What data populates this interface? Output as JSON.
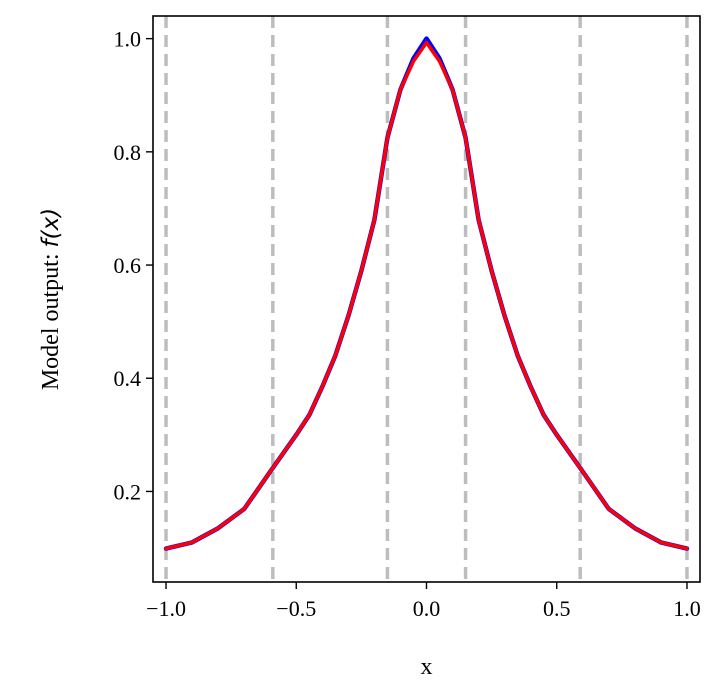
{
  "chart_data": {
    "type": "line",
    "title": "",
    "xlabel": "x",
    "ylabel": "Model output: ",
    "ylabel_math": "f(x)",
    "xlim": [
      -1.05,
      1.05
    ],
    "ylim": [
      0.04,
      1.04
    ],
    "x_ticks": [
      -1.0,
      -0.5,
      0.0,
      0.5,
      1.0
    ],
    "x_tick_labels": [
      "−1.0",
      "−0.5",
      "0.0",
      "0.5",
      "1.0"
    ],
    "y_ticks": [
      0.2,
      0.4,
      0.6,
      0.8,
      1.0
    ],
    "y_tick_labels": [
      "0.2",
      "0.4",
      "0.6",
      "0.8",
      "1.0"
    ],
    "grid": false,
    "legend": "none",
    "vertical_reference_lines": {
      "x": [
        -1.0,
        -0.59,
        -0.15,
        0.15,
        0.59,
        1.0
      ],
      "style": "dashed",
      "color": "#bdbdbd"
    },
    "series": [
      {
        "color": "#0000ff",
        "style": "solid",
        "x": [
          -1.0,
          -0.9,
          -0.8,
          -0.7,
          -0.6,
          -0.5,
          -0.45,
          -0.4,
          -0.35,
          -0.3,
          -0.25,
          -0.2,
          -0.15,
          -0.1,
          -0.05,
          0.0,
          0.05,
          0.1,
          0.15,
          0.2,
          0.25,
          0.3,
          0.35,
          0.4,
          0.45,
          0.5,
          0.6,
          0.7,
          0.8,
          0.9,
          1.0
        ],
        "y": [
          0.099,
          0.11,
          0.135,
          0.169,
          0.235,
          0.3,
          0.335,
          0.385,
          0.44,
          0.51,
          0.59,
          0.68,
          0.825,
          0.91,
          0.965,
          1.0,
          0.965,
          0.91,
          0.825,
          0.68,
          0.59,
          0.51,
          0.44,
          0.385,
          0.335,
          0.3,
          0.235,
          0.169,
          0.135,
          0.11,
          0.099
        ]
      },
      {
        "color": "#ff0000",
        "style": "solid",
        "x": [
          -1.0,
          -0.9,
          -0.8,
          -0.7,
          -0.6,
          -0.5,
          -0.45,
          -0.4,
          -0.35,
          -0.3,
          -0.25,
          -0.2,
          -0.15,
          -0.1,
          -0.05,
          0.0,
          0.05,
          0.1,
          0.15,
          0.2,
          0.25,
          0.3,
          0.35,
          0.4,
          0.45,
          0.5,
          0.6,
          0.7,
          0.8,
          0.9,
          1.0
        ],
        "y": [
          0.099,
          0.11,
          0.135,
          0.169,
          0.235,
          0.3,
          0.335,
          0.385,
          0.44,
          0.51,
          0.59,
          0.68,
          0.825,
          0.91,
          0.96,
          0.993,
          0.96,
          0.91,
          0.825,
          0.68,
          0.59,
          0.51,
          0.44,
          0.385,
          0.335,
          0.3,
          0.235,
          0.169,
          0.135,
          0.11,
          0.099
        ]
      }
    ]
  }
}
